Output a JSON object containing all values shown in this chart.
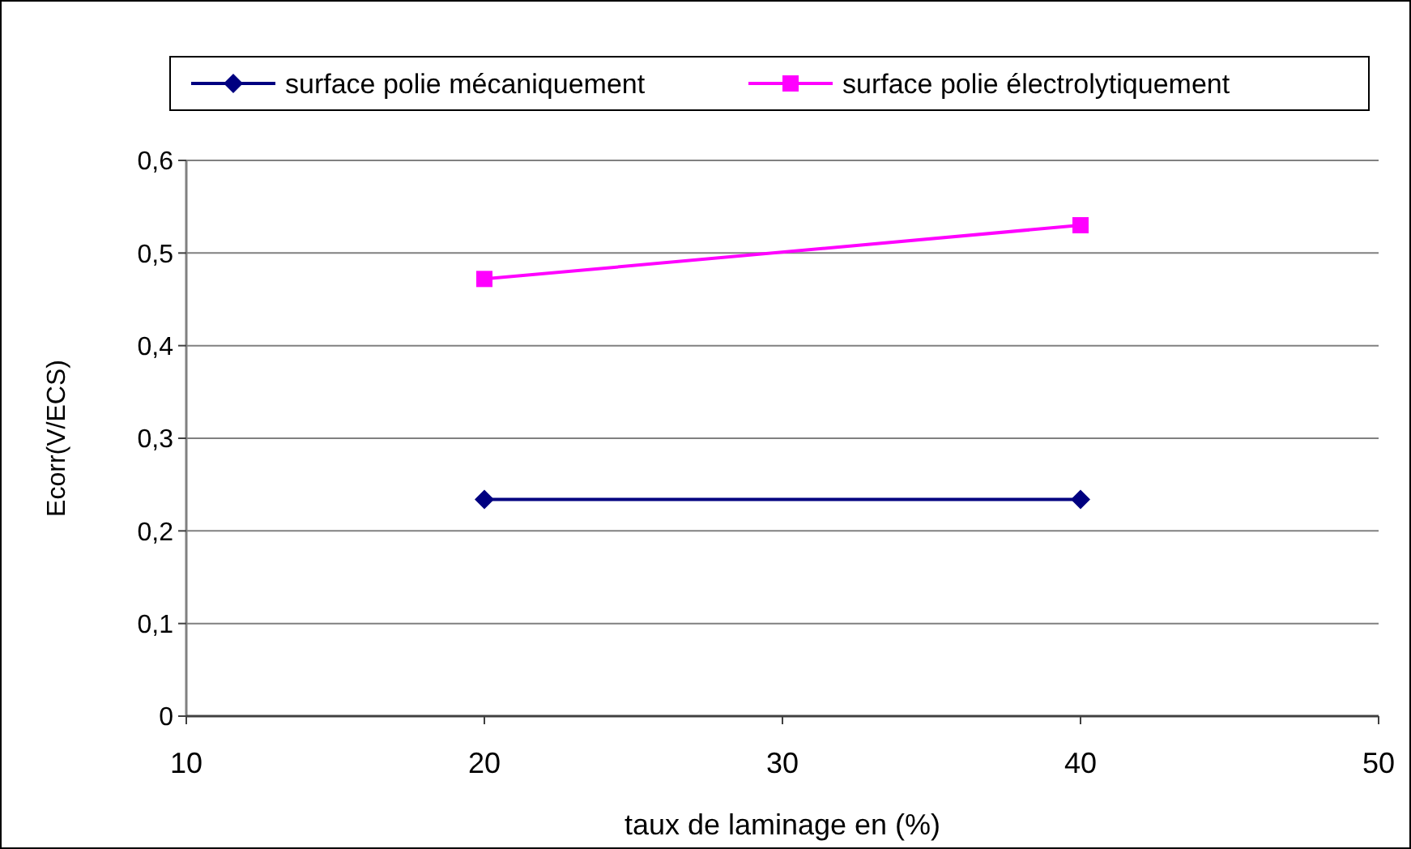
{
  "chart_data": {
    "type": "line",
    "xlabel": "taux de laminage en (%)",
    "ylabel": "Ecorr(V/ECS)",
    "xlim": [
      10,
      50
    ],
    "xticks": [
      10,
      20,
      30,
      40,
      50
    ],
    "ylim": [
      0,
      0.6
    ],
    "yticks": [
      {
        "value": 0,
        "label": "0"
      },
      {
        "value": 0.1,
        "label": "0,1"
      },
      {
        "value": 0.2,
        "label": "0,2"
      },
      {
        "value": 0.3,
        "label": "0,3"
      },
      {
        "value": 0.4,
        "label": "0,4"
      },
      {
        "value": 0.5,
        "label": "0,5"
      },
      {
        "value": 0.6,
        "label": "0,6"
      }
    ],
    "grid": "y",
    "legend": "top",
    "x": [
      20,
      40
    ],
    "series": [
      {
        "name": "surface polie mécaniquement",
        "color": "#000080",
        "values": [
          0.234,
          0.234
        ],
        "marker": "diamond"
      },
      {
        "name": "surface polie électrolytiquement",
        "color": "#ff00ff",
        "values": [
          0.472,
          0.53
        ],
        "marker": "square"
      }
    ]
  }
}
